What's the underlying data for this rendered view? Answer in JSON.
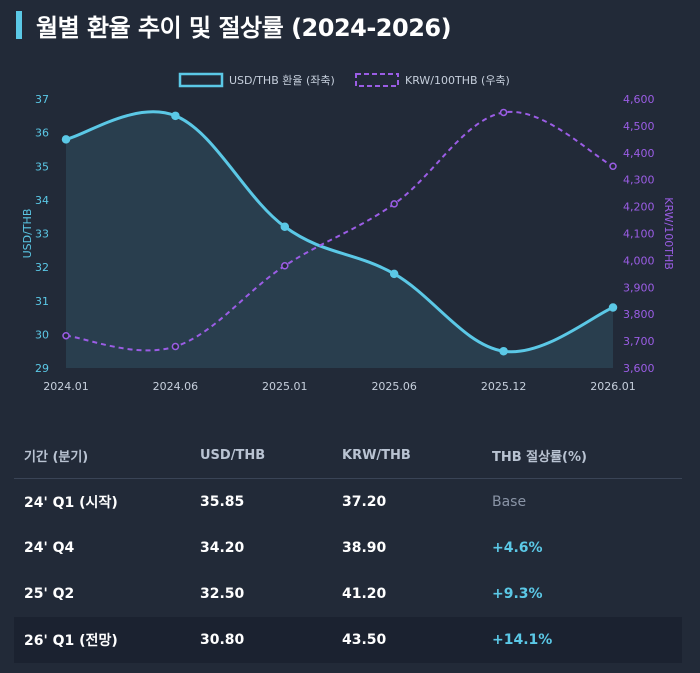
{
  "title": "월별 환율 추이 및 절상률 (2024-2026)",
  "colors": {
    "accent": "#5bc8e6",
    "purple": "#9b5de5",
    "bg": "#222a38"
  },
  "chart_data": {
    "type": "line",
    "x": [
      "2024.01",
      "2024.06",
      "2025.01",
      "2025.06",
      "2025.12",
      "2026.01"
    ],
    "series": [
      {
        "name": "USD/THB 환율 (좌축)",
        "axis": "left",
        "style": "solid-area",
        "color": "#5bc8e6",
        "values": [
          35.8,
          36.5,
          33.2,
          31.8,
          29.5,
          30.8
        ]
      },
      {
        "name": "KRW/100THB (우축)",
        "axis": "right",
        "style": "dashed",
        "color": "#9b5de5",
        "values": [
          3720,
          3680,
          3980,
          4210,
          4550,
          4350
        ]
      }
    ],
    "yleft": {
      "label": "USD/THB",
      "range": [
        29,
        37
      ],
      "ticks": [
        "29",
        "30",
        "31",
        "32",
        "33",
        "34",
        "35",
        "36",
        "37"
      ]
    },
    "yright": {
      "label": "KRW/100THB",
      "range": [
        3600,
        4600
      ],
      "ticks": [
        "3,600",
        "3,700",
        "3,800",
        "3,900",
        "4,000",
        "4,100",
        "4,200",
        "4,300",
        "4,400",
        "4,500",
        "4,600"
      ]
    },
    "legend": "top-center"
  },
  "table": {
    "headers": [
      "기간 (분기)",
      "USD/THB",
      "KRW/THB",
      "THB 절상률(%)"
    ],
    "rows": [
      {
        "period": "24' Q1 (시작)",
        "usd": "35.85",
        "krw": "37.20",
        "rate": "Base",
        "kind": "base"
      },
      {
        "period": "24' Q4",
        "usd": "34.20",
        "krw": "38.90",
        "rate": "+4.6%",
        "kind": "gain"
      },
      {
        "period": "25' Q2",
        "usd": "32.50",
        "krw": "41.20",
        "rate": "+9.3%",
        "kind": "gain"
      },
      {
        "period": "26' Q1 (전망)",
        "usd": "30.80",
        "krw": "43.50",
        "rate": "+14.1%",
        "kind": "gain",
        "highlight": true
      }
    ]
  }
}
